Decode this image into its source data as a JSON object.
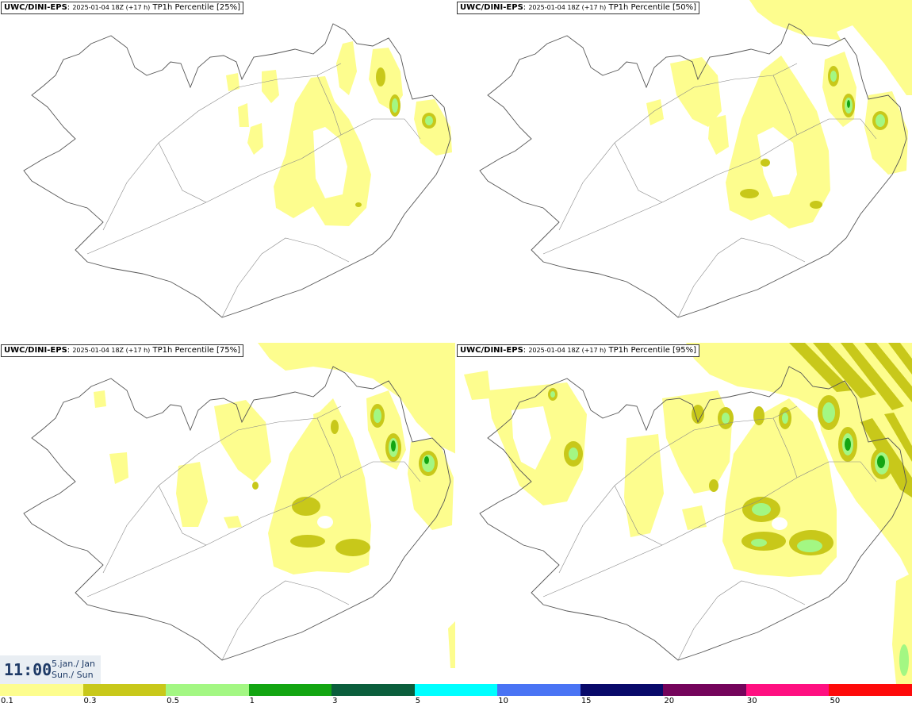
{
  "panels": [
    {
      "source": "UWC/DINI-EPS",
      "run": "2025-01-04 18Z (+17 h)",
      "field": "TP1h Percentile [25%]"
    },
    {
      "source": "UWC/DINI-EPS",
      "run": "2025-01-04 18Z (+17 h)",
      "field": "TP1h Percentile [50%]"
    },
    {
      "source": "UWC/DINI-EPS",
      "run": "2025-01-04 18Z (+17 h)",
      "field": "TP1h Percentile [75%]"
    },
    {
      "source": "UWC/DINI-EPS",
      "run": "2025-01-04 18Z (+17 h)",
      "field": "TP1h Percentile [95%]"
    }
  ],
  "valid_time": {
    "clock": "11:00",
    "date_line": "5.jan./ Jan",
    "day_line": "Sun./ Sun"
  },
  "legend": {
    "colors": [
      "#fdfd8e",
      "#c8c81a",
      "#a3f783",
      "#13a512",
      "#0b5e3c",
      "#00ffff",
      "#4a74f4",
      "#090a6a",
      "#74045b",
      "#ff1081",
      "#fe0a0a"
    ],
    "ticks": [
      "0.1",
      "0.3",
      "0.5",
      "1",
      "3",
      "5",
      "10",
      "15",
      "20",
      "30",
      "50"
    ]
  }
}
